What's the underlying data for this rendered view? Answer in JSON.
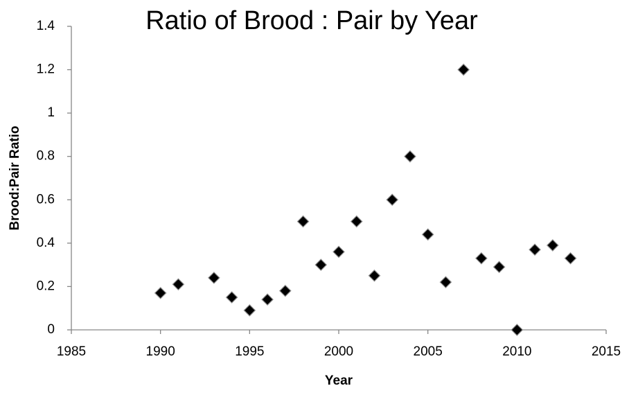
{
  "chart_data": {
    "type": "scatter",
    "title": "Ratio of Brood : Pair by Year",
    "x_label": "Year",
    "y_label": "Brood:Pair Ratio",
    "x": [
      1990,
      1991,
      1993,
      1994,
      1995,
      1996,
      1997,
      1998,
      1999,
      2000,
      2001,
      2002,
      2003,
      2004,
      2005,
      2006,
      2007,
      2008,
      2009,
      2010,
      2011,
      2012,
      2013
    ],
    "values": [
      0.17,
      0.21,
      0.24,
      0.15,
      0.09,
      0.14,
      0.18,
      0.5,
      0.3,
      0.36,
      0.5,
      0.25,
      0.6,
      0.8,
      0.44,
      0.22,
      1.2,
      0.33,
      0.29,
      0,
      0.37,
      0.39,
      0.33
    ],
    "color": "#000000",
    "xlim": [
      1985,
      2015
    ],
    "xticks": [
      1985,
      1990,
      1995,
      2000,
      2005,
      2010,
      2015
    ],
    "ylim": [
      0,
      1.4
    ],
    "yticks": [
      0,
      0.2,
      0.4,
      0.6,
      0.8,
      1,
      1.2,
      1.4
    ],
    "grid": false
  }
}
